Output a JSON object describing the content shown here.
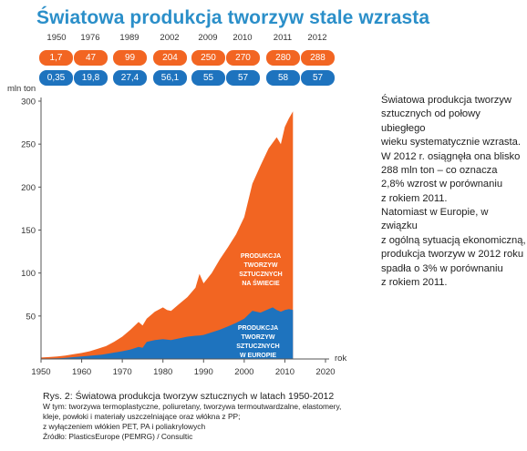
{
  "title": "Światowa produkcja tworzyw stale wzrasta",
  "table": {
    "years": [
      "1950",
      "1976",
      "1989",
      "2002",
      "2009",
      "2010",
      "2011",
      "2012"
    ],
    "world": [
      "1,7",
      "47",
      "99",
      "204",
      "250",
      "270",
      "280",
      "288"
    ],
    "europe": [
      "0,35",
      "19,8",
      "27,4",
      "56,1",
      "55",
      "57",
      "58",
      "57"
    ]
  },
  "colors": {
    "world": "#f26522",
    "europe": "#1e73be",
    "title": "#2b8fc9",
    "axis": "#555555"
  },
  "chart_data": {
    "type": "area",
    "ylabel": "mln ton",
    "xlabel": "rok",
    "xlim": [
      1950,
      2020
    ],
    "ylim": [
      0,
      300
    ],
    "x_ticks": [
      "1950",
      "1960",
      "1970",
      "1980",
      "1990",
      "2000",
      "2010",
      "2020"
    ],
    "y_ticks": [
      "50",
      "100",
      "150",
      "200",
      "250",
      "300"
    ],
    "series": [
      {
        "name": "PRODUKCJA TWORZYW SZTUCZNYCH NA ŚWIECIE",
        "x": [
          1950,
          1952,
          1954,
          1956,
          1958,
          1960,
          1962,
          1964,
          1966,
          1968,
          1970,
          1972,
          1974,
          1975,
          1976,
          1978,
          1980,
          1981,
          1982,
          1984,
          1986,
          1988,
          1989,
          1990,
          1992,
          1994,
          1996,
          1998,
          2000,
          2002,
          2004,
          2006,
          2008,
          2009,
          2010,
          2011,
          2012
        ],
        "values": [
          1.7,
          2.2,
          3,
          4,
          5.5,
          7,
          9,
          12,
          15,
          20,
          26,
          34,
          43,
          39,
          47,
          55,
          60,
          57,
          56,
          64,
          72,
          83,
          99,
          88,
          100,
          116,
          130,
          145,
          165,
          204,
          225,
          245,
          258,
          250,
          270,
          280,
          288
        ]
      },
      {
        "name": "PRODUKCJA TWORZYW SZTUCZNYCH W EUROPIE",
        "x": [
          1950,
          1955,
          1960,
          1965,
          1970,
          1972,
          1974,
          1975,
          1976,
          1978,
          1980,
          1982,
          1984,
          1986,
          1988,
          1989,
          1990,
          1992,
          1994,
          1996,
          1998,
          2000,
          2002,
          2004,
          2006,
          2007,
          2008,
          2009,
          2010,
          2011,
          2012
        ],
        "values": [
          0.35,
          1,
          3,
          5,
          9,
          11,
          14,
          13,
          19.8,
          22,
          23,
          22,
          24,
          26,
          27,
          27.4,
          28,
          31,
          34,
          38,
          42,
          47,
          56.1,
          54,
          58,
          60,
          57,
          55,
          57,
          58,
          57
        ]
      }
    ],
    "labels": {
      "world": [
        "PRODUKCJA",
        "TWORZYW",
        "SZTUCZNYCH",
        "NA ŚWIECIE"
      ],
      "europe": [
        "PRODUKCJA",
        "TWORZYW",
        "SZTUCZNYCH",
        "W EUROPIE"
      ]
    }
  },
  "side_text": {
    "para1": [
      "Światowa produkcja tworzyw",
      "sztucznych od połowy ubiegłego",
      "wieku systematycznie wzrasta.",
      "W 2012 r. osiągnęła ona blisko",
      "288 mln ton – co oznacza",
      "2,8% wzrost w porównaniu",
      "z rokiem 2011."
    ],
    "para2": [
      "Natomiast w Europie, w związku",
      "z ogólną sytuacją ekonomiczną,",
      "produkcja tworzyw w 2012 roku",
      "spadła o 3% w porównaniu",
      "z rokiem 2011."
    ]
  },
  "caption": {
    "main": "Rys. 2:  Światowa produkcja tworzyw sztucznych w latach 1950-2012",
    "notes": [
      "W tym: tworzywa termoplastyczne, poliuretany, tworzywa termoutwardzalne, elastomery,",
      "kleje, powłoki i materiały uszczelniające oraz włókna z PP;",
      "z wyłączeniem włókien PET, PA i poliakrylowych",
      "Źródło: PlasticsEurope (PEMRG) / Consultic"
    ]
  }
}
